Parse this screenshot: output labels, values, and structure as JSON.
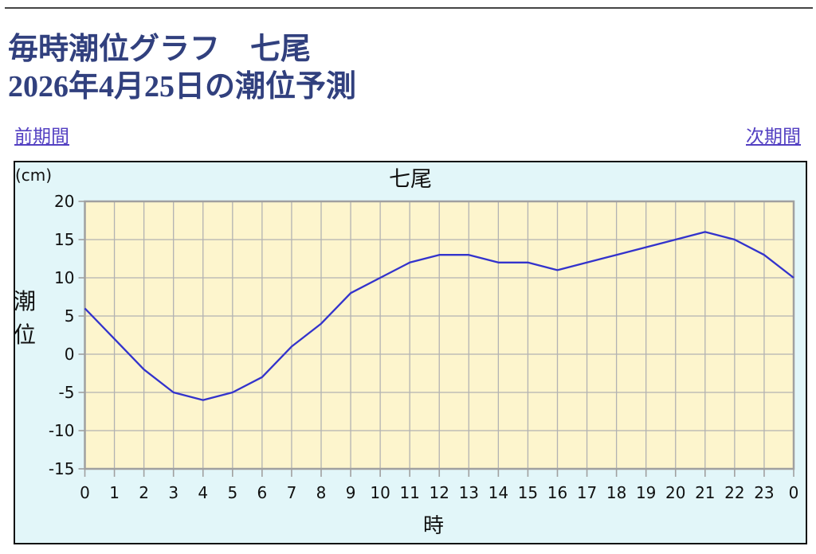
{
  "page": {
    "title_line1": "毎時潮位グラフ　七尾",
    "title_line2": "2026年4月25日の潮位予測",
    "prev_link": "前期間",
    "next_link": "次期間"
  },
  "chart_data": {
    "type": "line",
    "title": "七尾",
    "unit_label": "(cm)",
    "ylabel": "潮位",
    "xlabel": "時",
    "x": [
      0,
      1,
      2,
      3,
      4,
      5,
      6,
      7,
      8,
      9,
      10,
      11,
      12,
      13,
      14,
      15,
      16,
      17,
      18,
      19,
      20,
      21,
      22,
      23,
      24
    ],
    "x_tick_labels": [
      "0",
      "1",
      "2",
      "3",
      "4",
      "5",
      "6",
      "7",
      "8",
      "9",
      "10",
      "11",
      "12",
      "13",
      "14",
      "15",
      "16",
      "17",
      "18",
      "19",
      "20",
      "21",
      "22",
      "23",
      "0"
    ],
    "values": [
      6,
      2,
      -2,
      -5,
      -6,
      -5,
      -3,
      1,
      4,
      8,
      10,
      12,
      13,
      13,
      12,
      12,
      11,
      12,
      13,
      14,
      15,
      16,
      15,
      13,
      10
    ],
    "ylim": [
      -15,
      20
    ],
    "y_ticks": [
      20,
      15,
      10,
      5,
      0,
      -5,
      -10,
      -15
    ],
    "grid": true,
    "line_color": "#3333cc",
    "plot_bg": "#fdf5cd",
    "chart_bg": "#e2f6f9",
    "grid_color": "#b2b2b2",
    "frame_color": "#a0a0a0"
  }
}
